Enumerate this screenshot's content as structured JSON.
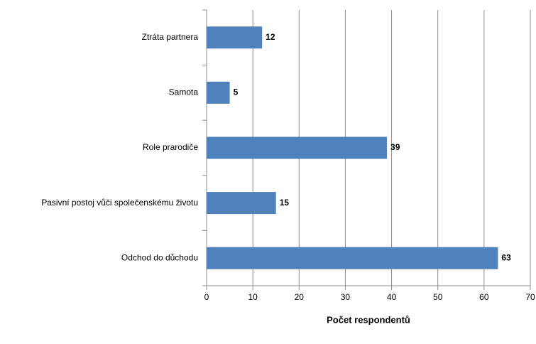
{
  "chart_data": {
    "type": "bar",
    "orientation": "horizontal",
    "categories": [
      "Ztráta partnera",
      "Samota",
      "Role prarodiče",
      "Pasivní postoj vůči společenskému životu",
      "Odchod do důchodu"
    ],
    "values": [
      12,
      5,
      39,
      15,
      63
    ],
    "color": "#4f81bd",
    "xlabel": "Počet respondentů",
    "xlim": [
      0,
      70
    ],
    "xticks": [
      0,
      10,
      20,
      30,
      40,
      50,
      60,
      70
    ],
    "grid": true
  }
}
